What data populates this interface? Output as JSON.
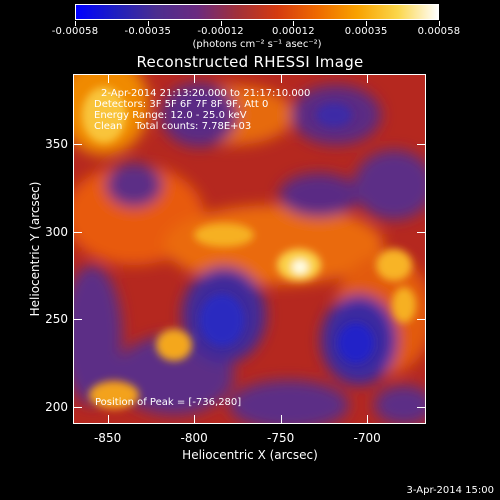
{
  "colorbar": {
    "ticks": [
      "-0.00058",
      "-0.00035",
      "-0.00012",
      "0.00012",
      "0.00035",
      "0.00058"
    ],
    "units": "(photons cm⁻² s⁻¹ asec⁻²)",
    "colormap": [
      "#0000ff",
      "#1f1fbf",
      "#4b2e8f",
      "#6a2a80",
      "#a0303a",
      "#d43a10",
      "#ee6a00",
      "#f8a200",
      "#fbd64a",
      "#ffffff"
    ]
  },
  "title": "Reconstructed RHESSI Image",
  "annotations": {
    "time_range": "2-Apr-2014 21:13:20.000 to 21:17:10.000",
    "detectors": "Detectors: 3F 5F 6F 7F 8F 9F, Att 0",
    "energy_range": "Energy Range: 12.0 - 25.0 keV",
    "method_counts": "Clean    Total counts: 7.78E+03",
    "peak_position": "Position of Peak = [-736,280]"
  },
  "axes": {
    "x_label": "Heliocentric X (arcsec)",
    "y_label": "Heliocentric Y (arcsec)",
    "x_ticks": [
      "-850",
      "-800",
      "-750",
      "-700"
    ],
    "y_ticks": [
      "350",
      "300",
      "250",
      "200"
    ]
  },
  "timestamp": "3-Apr-2014 15:00"
}
